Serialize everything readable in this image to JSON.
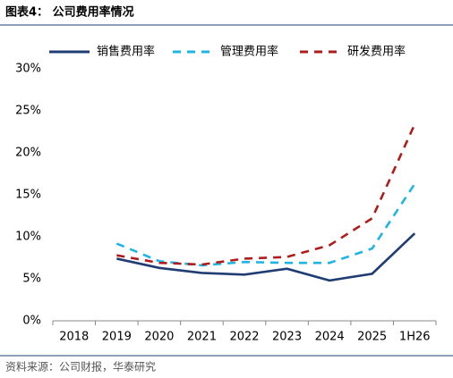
{
  "chart_data": {
    "type": "line",
    "title": "图表4：  公司费用率情况",
    "source": "资料来源：公司财报，华泰研究",
    "categories": [
      "2018",
      "2019",
      "2020",
      "2021",
      "2022",
      "2023",
      "2024",
      "2025",
      "1H26"
    ],
    "series": [
      {
        "name": "销售费用率",
        "color": "#1f3c73",
        "dash": "solid",
        "values": [
          null,
          7.4,
          6.3,
          5.7,
          5.5,
          6.2,
          4.8,
          5.6,
          10.4
        ]
      },
      {
        "name": "管理费用率",
        "color": "#1fb4e6",
        "dash": "dashed",
        "values": [
          null,
          9.2,
          7.1,
          6.6,
          7.0,
          6.9,
          6.9,
          8.6,
          16.3
        ]
      },
      {
        "name": "研发费用率",
        "color": "#b01c1c",
        "dash": "dashed",
        "values": [
          null,
          7.8,
          6.9,
          6.7,
          7.4,
          7.6,
          9.0,
          12.2,
          23.4
        ]
      }
    ],
    "ylim": [
      0,
      30
    ],
    "yticks": [
      {
        "value": 0,
        "label": "0%"
      },
      {
        "value": 5,
        "label": "5%"
      },
      {
        "value": 10,
        "label": "10%"
      },
      {
        "value": 15,
        "label": "15%"
      },
      {
        "value": 20,
        "label": "20%"
      },
      {
        "value": 25,
        "label": "25%"
      },
      {
        "value": 30,
        "label": "30%"
      }
    ],
    "legend": "top"
  }
}
